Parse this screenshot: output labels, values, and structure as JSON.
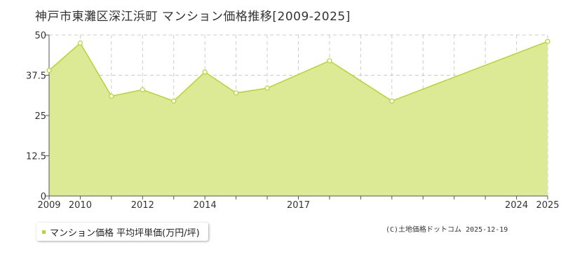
{
  "title": "神戸市東灘区深江浜町 マンション価格推移[2009-2025]",
  "legend": {
    "label": "マンション価格 平均坪単価(万円/坪)"
  },
  "credit": "(C)土地価格ドットコム 2025-12-19",
  "colors": {
    "area_fill": "#dcea96",
    "line": "#b5d42f",
    "point_fill": "#ffffff",
    "grid": "#cccccc",
    "axis": "#555555",
    "legend_marker": "#b5d42f"
  },
  "chart_data": {
    "type": "area",
    "x": [
      2009,
      2010,
      2011,
      2012,
      2013,
      2014,
      2015,
      2016,
      2017,
      2018,
      2019,
      2020,
      2021,
      2022,
      2023,
      2024,
      2025
    ],
    "series": [
      {
        "name": "マンション価格 平均坪単価(万円/坪)",
        "points": [
          {
            "x": 2009,
            "y": 39.0
          },
          {
            "x": 2010,
            "y": 47.5
          },
          {
            "x": 2011,
            "y": 31.0
          },
          {
            "x": 2012,
            "y": 33.0
          },
          {
            "x": 2013,
            "y": 29.5
          },
          {
            "x": 2014,
            "y": 38.5
          },
          {
            "x": 2015,
            "y": 32.0
          },
          {
            "x": 2016,
            "y": 33.5
          },
          {
            "x": 2018,
            "y": 42.0
          },
          {
            "x": 2020,
            "y": 29.5
          },
          {
            "x": 2025,
            "y": 48.0
          }
        ]
      }
    ],
    "x_ticks": [
      2009,
      2010,
      2012,
      2014,
      2017,
      2024,
      2025
    ],
    "y_ticks": [
      0,
      12.5,
      25,
      37.5,
      50
    ],
    "y_tick_labels": [
      "0",
      "12.5",
      "25",
      "37.5",
      "50"
    ],
    "xlim": [
      2009,
      2025
    ],
    "ylim": [
      0,
      50
    ],
    "grid": true
  }
}
